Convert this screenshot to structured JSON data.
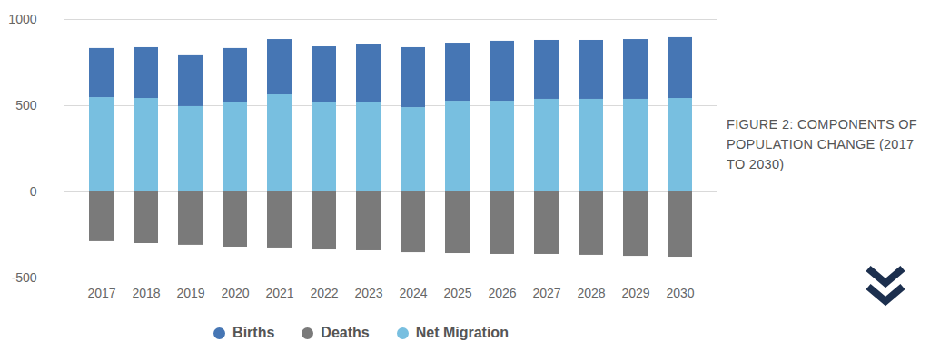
{
  "chart_data": {
    "type": "bar",
    "title": "FIGURE 2: COMPONENTS OF POPULATION CHANGE (2017 TO 2030)",
    "categories": [
      "2017",
      "2018",
      "2019",
      "2020",
      "2021",
      "2022",
      "2023",
      "2024",
      "2025",
      "2026",
      "2027",
      "2028",
      "2029",
      "2030"
    ],
    "series": [
      {
        "name": "Births",
        "color": "#4676b4",
        "values": [
          285,
          295,
          295,
          311,
          321,
          321,
          337,
          348,
          337,
          348,
          342,
          342,
          347,
          353
        ]
      },
      {
        "name": "Deaths",
        "color": "#7a7a7a",
        "values": [
          -289,
          -300,
          -310,
          -321,
          -326,
          -337,
          -342,
          -353,
          -358,
          -363,
          -363,
          -368,
          -374,
          -379
        ]
      },
      {
        "name": "Net Migration",
        "color": "#78bfe0",
        "values": [
          547,
          542,
          495,
          521,
          563,
          521,
          516,
          489,
          526,
          526,
          537,
          537,
          537,
          542
        ]
      }
    ],
    "stacked": true,
    "ylim": [
      -500,
      1000
    ],
    "yticks": [
      -500,
      0,
      500,
      1000
    ],
    "grid": true,
    "legend": "bottom"
  }
}
